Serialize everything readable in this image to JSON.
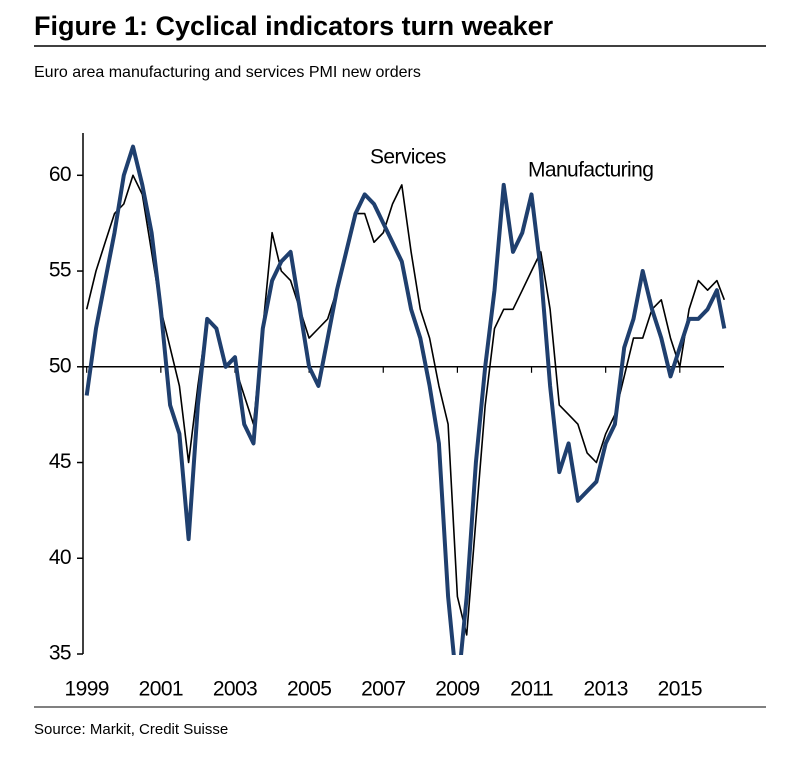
{
  "chart_data": {
    "type": "line",
    "title": "Figure 1: Cyclical indicators turn weaker",
    "subtitle": "Euro area manufacturing and services PMI new orders",
    "source": "Source: Markit, Credit Suisse",
    "x": [
      1999.0,
      1999.25,
      1999.5,
      1999.75,
      2000.0,
      2000.25,
      2000.5,
      2000.75,
      2001.0,
      2001.25,
      2001.5,
      2001.75,
      2002.0,
      2002.25,
      2002.5,
      2002.75,
      2003.0,
      2003.25,
      2003.5,
      2003.75,
      2004.0,
      2004.25,
      2004.5,
      2004.75,
      2005.0,
      2005.25,
      2005.5,
      2005.75,
      2006.0,
      2006.25,
      2006.5,
      2006.75,
      2007.0,
      2007.25,
      2007.5,
      2007.75,
      2008.0,
      2008.25,
      2008.5,
      2008.75,
      2009.0,
      2009.25,
      2009.5,
      2009.75,
      2010.0,
      2010.25,
      2010.5,
      2010.75,
      2011.0,
      2011.25,
      2011.5,
      2011.75,
      2012.0,
      2012.25,
      2012.5,
      2012.75,
      2013.0,
      2013.25,
      2013.5,
      2013.75,
      2014.0,
      2014.25,
      2014.5,
      2014.75,
      2015.0,
      2015.25,
      2015.5,
      2015.75,
      2016.0,
      2016.2
    ],
    "series": [
      {
        "name": "Services",
        "color": "#000000",
        "width": 1.6,
        "values": [
          53,
          55,
          56.5,
          58,
          58.5,
          60,
          59,
          56,
          53,
          51,
          49,
          45,
          49,
          52.5,
          52,
          50,
          50,
          48.5,
          47,
          52,
          57,
          55,
          54.5,
          53,
          51.5,
          52,
          52.5,
          54,
          56,
          58,
          58,
          56.5,
          57,
          58.5,
          59.5,
          56,
          53,
          51.5,
          49,
          47,
          38,
          36,
          42,
          48,
          52,
          53,
          53,
          54,
          55,
          56,
          53,
          48,
          47.5,
          47,
          45.5,
          45,
          46.5,
          47.5,
          49.5,
          51.5,
          51.5,
          53,
          53.5,
          51.5,
          50,
          53,
          54.5,
          54,
          54.5,
          53.5
        ]
      },
      {
        "name": "Manufacturing",
        "color": "#1f3f6e",
        "width": 4,
        "values": [
          48.5,
          52,
          54.5,
          57,
          60,
          61.5,
          59.5,
          57,
          53,
          48,
          46.5,
          41,
          48,
          52.5,
          52,
          50,
          50.5,
          47,
          46,
          52,
          54.5,
          55.5,
          56,
          53,
          50,
          49,
          51.5,
          54,
          56,
          58,
          59,
          58.5,
          57.5,
          56.5,
          55.5,
          53,
          51.5,
          49,
          46,
          38,
          33,
          38,
          45,
          50,
          54,
          59.5,
          56,
          57,
          59,
          55,
          49,
          44.5,
          46,
          43,
          43.5,
          44,
          46,
          47,
          51,
          52.5,
          55,
          53,
          51.5,
          49.5,
          51,
          52.5,
          52.5,
          53,
          54,
          52
        ]
      }
    ],
    "xlim": [
      1998.9,
      2016.3
    ],
    "ylim": [
      35,
      62
    ],
    "xticks": [
      1999,
      2001,
      2003,
      2005,
      2007,
      2009,
      2011,
      2013,
      2015
    ],
    "yticks": [
      35,
      40,
      45,
      50,
      55,
      60
    ],
    "hline": 50
  }
}
